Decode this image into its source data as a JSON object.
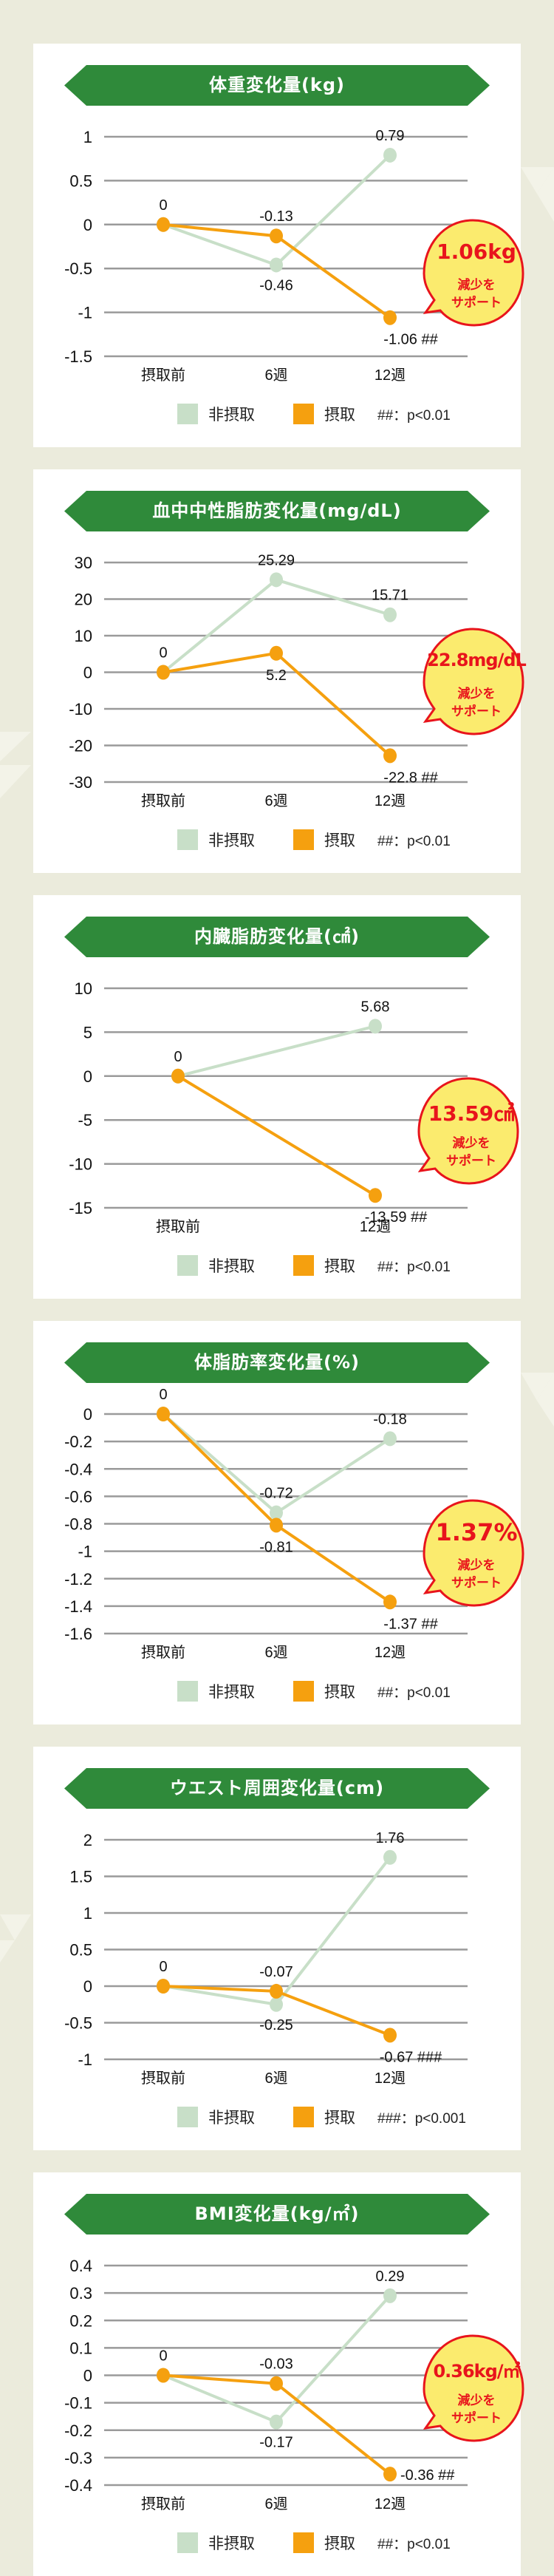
{
  "legend": {
    "non_intake_label": "非摂取",
    "intake_label": "摂取",
    "non_intake_color": "#c8dfc8",
    "intake_color": "#f5a00f"
  },
  "colors": {
    "background": "#ebebdc",
    "banner_green": "#2f8a3a",
    "balloon_fill": "#fbeb6e",
    "balloon_border": "#e8141c",
    "grid": "#9a9a9a"
  },
  "balloon_sub1": "減少を",
  "balloon_sub2": "サポート",
  "cards": [
    {
      "title": "体重変化量(kg)",
      "note": "##：p<0.01",
      "balloon": "1.06kg"
    },
    {
      "title": "血中中性脂肪変化量(mg/dL)",
      "note": "##：p<0.01",
      "balloon": "22.8mg/dL"
    },
    {
      "title": "内臓脂肪変化量(㎠)",
      "note": "##：p<0.01",
      "balloon": "13.59㎠"
    },
    {
      "title": "体脂肪率変化量(%)",
      "note": "##：p<0.01",
      "balloon": "1.37%"
    },
    {
      "title": "ウエスト周囲変化量(cm)",
      "note": "###：p<0.001",
      "balloon": null
    },
    {
      "title": "BMI変化量(kg/㎡)",
      "note": "##：p<0.01",
      "balloon": "0.36kg/㎡"
    }
  ],
  "chart_data": [
    {
      "type": "line",
      "title": "体重変化量(kg)",
      "categories": [
        "摂取前",
        "6週",
        "12週"
      ],
      "series": [
        {
          "name": "非摂取",
          "values": [
            0,
            -0.46,
            0.79
          ],
          "labels": [
            "",
            "-0.46",
            "0.79"
          ]
        },
        {
          "name": "摂取",
          "values": [
            0,
            -0.13,
            -1.06
          ],
          "labels": [
            "0",
            "-0.13",
            "-1.06 ##"
          ]
        }
      ],
      "yticks": [
        1,
        0.5,
        0,
        -0.5,
        -1,
        -1.5
      ],
      "ytick_labels": [
        "1",
        "0.5",
        "0",
        "-0.5",
        "-1",
        "-1.5"
      ],
      "ylim": [
        -1.5,
        1
      ],
      "grid": true,
      "legend_position": "bottom",
      "annotation": "1.06kg 減少をサポート",
      "significance": "##：p<0.01"
    },
    {
      "type": "line",
      "title": "血中中性脂肪変化量(mg/dL)",
      "categories": [
        "摂取前",
        "6週",
        "12週"
      ],
      "series": [
        {
          "name": "非摂取",
          "values": [
            0,
            25.29,
            15.71
          ],
          "labels": [
            "",
            "25.29",
            "15.71"
          ]
        },
        {
          "name": "摂取",
          "values": [
            0,
            5.2,
            -22.8
          ],
          "labels": [
            "0",
            "5.2",
            "-22.8 ##"
          ]
        }
      ],
      "yticks": [
        30,
        20,
        10,
        0,
        -10,
        -20,
        -30
      ],
      "ytick_labels": [
        "30",
        "20",
        "10",
        "0",
        "-10",
        "-20",
        "-30"
      ],
      "ylim": [
        -30,
        30
      ],
      "grid": true,
      "legend_position": "bottom",
      "annotation": "22.8mg/dL 減少をサポート",
      "significance": "##：p<0.01"
    },
    {
      "type": "line",
      "title": "内臓脂肪変化量(㎠)",
      "categories": [
        "摂取前",
        "12週"
      ],
      "series": [
        {
          "name": "非摂取",
          "values": [
            0,
            5.68
          ],
          "labels": [
            "",
            "5.68"
          ]
        },
        {
          "name": "摂取",
          "values": [
            0,
            -13.59
          ],
          "labels": [
            "0",
            "-13.59 ##"
          ]
        }
      ],
      "yticks": [
        10,
        5,
        0,
        -5,
        -10,
        -15
      ],
      "ytick_labels": [
        "10",
        "5",
        "0",
        "-5",
        "-10",
        "-15"
      ],
      "ylim": [
        -15,
        10
      ],
      "grid": true,
      "legend_position": "bottom",
      "annotation": "13.59㎠ 減少をサポート",
      "significance": "##：p<0.01"
    },
    {
      "type": "line",
      "title": "体脂肪率変化量(%)",
      "categories": [
        "摂取前",
        "6週",
        "12週"
      ],
      "series": [
        {
          "name": "非摂取",
          "values": [
            0,
            -0.72,
            -0.18
          ],
          "labels": [
            "",
            "-0.72",
            "-0.18"
          ]
        },
        {
          "name": "摂取",
          "values": [
            0,
            -0.81,
            -1.37
          ],
          "labels": [
            "0",
            "-0.81",
            "-1.37 ##"
          ]
        }
      ],
      "yticks": [
        0,
        -0.2,
        -0.4,
        -0.6,
        -0.8,
        -1,
        -1.2,
        -1.4,
        -1.6
      ],
      "ytick_labels": [
        "0",
        "-0.2",
        "-0.4",
        "-0.6",
        "-0.8",
        "-1",
        "-1.2",
        "-1.4",
        "-1.6"
      ],
      "ylim": [
        -1.6,
        0
      ],
      "grid": true,
      "legend_position": "bottom",
      "annotation": "1.37% 減少をサポート",
      "significance": "##：p<0.01"
    },
    {
      "type": "line",
      "title": "ウエスト周囲変化量(cm)",
      "categories": [
        "摂取前",
        "6週",
        "12週"
      ],
      "series": [
        {
          "name": "非摂取",
          "values": [
            0,
            -0.25,
            1.76
          ],
          "labels": [
            "",
            "-0.25",
            "1.76"
          ]
        },
        {
          "name": "摂取",
          "values": [
            0,
            -0.07,
            -0.67
          ],
          "labels": [
            "0",
            "-0.07",
            "-0.67 ###"
          ]
        }
      ],
      "yticks": [
        2,
        1.5,
        1,
        0.5,
        0,
        -0.5,
        -1
      ],
      "ytick_labels": [
        "2",
        "1.5",
        "1",
        "0.5",
        "0",
        "-0.5",
        "-1"
      ],
      "ylim": [
        -1,
        2
      ],
      "grid": true,
      "legend_position": "bottom",
      "annotation": "",
      "significance": "###：p<0.001"
    },
    {
      "type": "line",
      "title": "BMI変化量(kg/㎡)",
      "categories": [
        "摂取前",
        "6週",
        "12週"
      ],
      "series": [
        {
          "name": "非摂取",
          "values": [
            0,
            -0.17,
            0.29
          ],
          "labels": [
            "",
            "-0.17",
            "0.29"
          ]
        },
        {
          "name": "摂取",
          "values": [
            0,
            -0.03,
            -0.36
          ],
          "labels": [
            "0",
            "-0.03",
            "-0.36 ##"
          ]
        }
      ],
      "yticks": [
        0.4,
        0.3,
        0.2,
        0.1,
        0,
        -0.1,
        -0.2,
        -0.3,
        -0.4
      ],
      "ytick_labels": [
        "0.4",
        "0.3",
        "0.2",
        "0.1",
        "0",
        "-0.1",
        "-0.2",
        "-0.3",
        "-0.4"
      ],
      "ylim": [
        -0.4,
        0.4
      ],
      "grid": true,
      "legend_position": "bottom",
      "annotation": "0.36kg/㎡ 減少をサポート",
      "significance": "##：p<0.01"
    }
  ]
}
